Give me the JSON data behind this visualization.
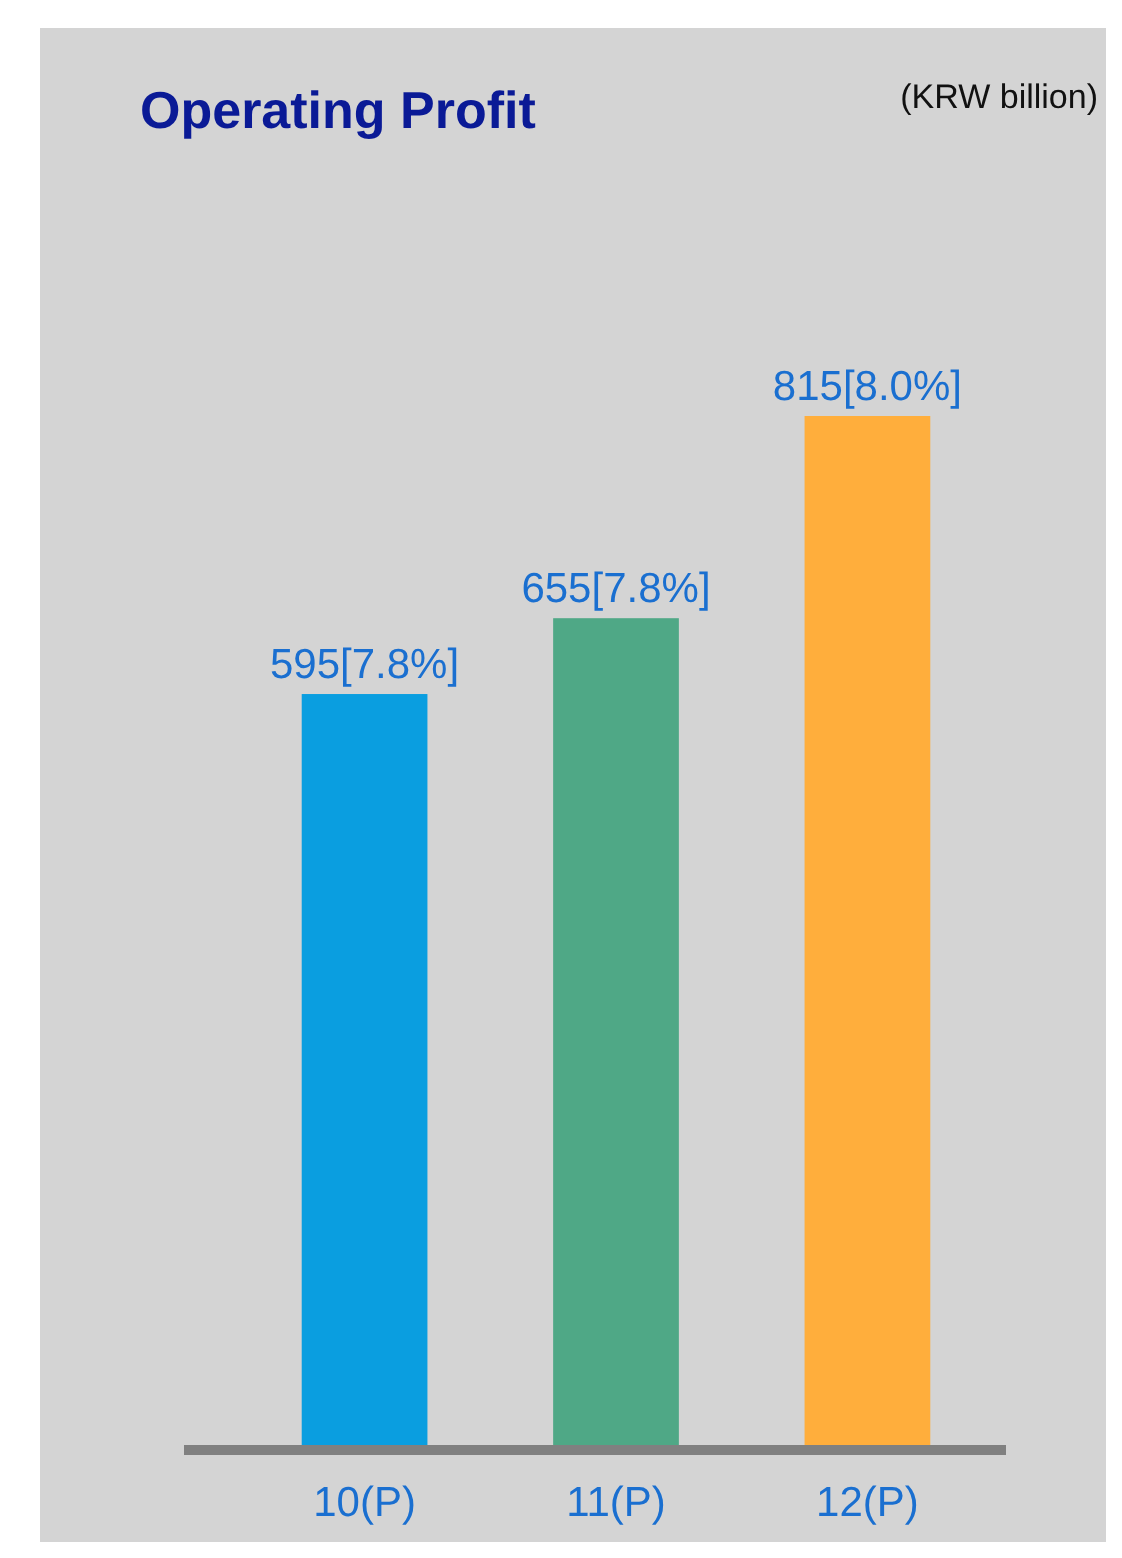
{
  "chart_data": {
    "type": "bar",
    "title": "Operating Profit",
    "annotations": [
      "(KRW billion)"
    ],
    "categories": [
      "10(P)",
      "11(P)",
      "12(P)"
    ],
    "values": [
      595,
      655,
      815
    ],
    "colors": [
      "#0a9ee0",
      "#4fa886",
      "#ffae3c"
    ],
    "value_labels": [
      "595[7.8%]",
      "655[7.8%]",
      "815[8.0%]"
    ]
  }
}
